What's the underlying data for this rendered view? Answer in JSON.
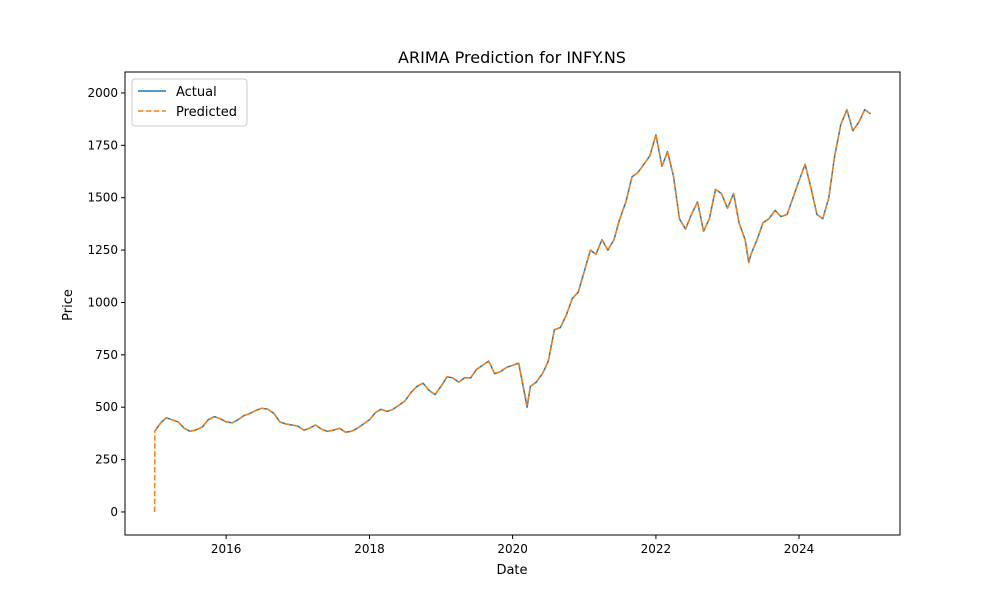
{
  "chart_data": {
    "type": "line",
    "title": "ARIMA Prediction for INFY.NS",
    "xlabel": "Date",
    "ylabel": "Price",
    "xlim": [
      "2014-08-03",
      "2025-05-30"
    ],
    "ylim": [
      -110,
      2100
    ],
    "x_ticks": [
      {
        "value": "2016-01-01",
        "label": "2016"
      },
      {
        "value": "2018-01-01",
        "label": "2018"
      },
      {
        "value": "2020-01-01",
        "label": "2020"
      },
      {
        "value": "2022-01-01",
        "label": "2022"
      },
      {
        "value": "2024-01-01",
        "label": "2024"
      }
    ],
    "y_ticks": [
      0,
      250,
      500,
      750,
      1000,
      1250,
      1500,
      1750,
      2000
    ],
    "grid": false,
    "legend_position": "top-left",
    "series": [
      {
        "name": "Actual",
        "color": "#1f77b4",
        "style": "solid",
        "points": [
          [
            "2015-01-01",
            385
          ],
          [
            "2015-02-01",
            425
          ],
          [
            "2015-03-01",
            450
          ],
          [
            "2015-04-01",
            440
          ],
          [
            "2015-05-01",
            430
          ],
          [
            "2015-06-01",
            400
          ],
          [
            "2015-07-01",
            385
          ],
          [
            "2015-08-01",
            392
          ],
          [
            "2015-09-01",
            405
          ],
          [
            "2015-10-01",
            440
          ],
          [
            "2015-11-01",
            455
          ],
          [
            "2015-12-01",
            445
          ],
          [
            "2016-01-01",
            430
          ],
          [
            "2016-02-01",
            425
          ],
          [
            "2016-03-01",
            440
          ],
          [
            "2016-04-01",
            460
          ],
          [
            "2016-05-01",
            470
          ],
          [
            "2016-06-01",
            485
          ],
          [
            "2016-07-01",
            495
          ],
          [
            "2016-08-01",
            490
          ],
          [
            "2016-09-01",
            470
          ],
          [
            "2016-10-01",
            430
          ],
          [
            "2016-11-01",
            420
          ],
          [
            "2016-12-01",
            415
          ],
          [
            "2017-01-01",
            410
          ],
          [
            "2017-02-01",
            390
          ],
          [
            "2017-03-01",
            400
          ],
          [
            "2017-04-01",
            415
          ],
          [
            "2017-05-01",
            395
          ],
          [
            "2017-06-01",
            385
          ],
          [
            "2017-07-01",
            390
          ],
          [
            "2017-08-01",
            400
          ],
          [
            "2017-09-01",
            380
          ],
          [
            "2017-10-01",
            385
          ],
          [
            "2017-11-01",
            400
          ],
          [
            "2017-12-01",
            420
          ],
          [
            "2018-01-01",
            440
          ],
          [
            "2018-02-01",
            475
          ],
          [
            "2018-03-01",
            490
          ],
          [
            "2018-04-01",
            480
          ],
          [
            "2018-05-01",
            490
          ],
          [
            "2018-06-01",
            510
          ],
          [
            "2018-07-01",
            530
          ],
          [
            "2018-08-01",
            570
          ],
          [
            "2018-09-01",
            600
          ],
          [
            "2018-10-01",
            615
          ],
          [
            "2018-11-01",
            580
          ],
          [
            "2018-12-01",
            560
          ],
          [
            "2019-01-01",
            600
          ],
          [
            "2019-02-01",
            645
          ],
          [
            "2019-03-01",
            640
          ],
          [
            "2019-04-01",
            620
          ],
          [
            "2019-05-01",
            640
          ],
          [
            "2019-06-01",
            640
          ],
          [
            "2019-07-01",
            680
          ],
          [
            "2019-08-01",
            700
          ],
          [
            "2019-09-01",
            720
          ],
          [
            "2019-10-01",
            660
          ],
          [
            "2019-11-01",
            670
          ],
          [
            "2019-12-01",
            690
          ],
          [
            "2020-01-01",
            700
          ],
          [
            "2020-02-01",
            710
          ],
          [
            "2020-03-15",
            500
          ],
          [
            "2020-04-01",
            600
          ],
          [
            "2020-05-01",
            620
          ],
          [
            "2020-06-01",
            660
          ],
          [
            "2020-07-01",
            720
          ],
          [
            "2020-08-01",
            870
          ],
          [
            "2020-09-01",
            880
          ],
          [
            "2020-10-01",
            940
          ],
          [
            "2020-11-01",
            1020
          ],
          [
            "2020-12-01",
            1050
          ],
          [
            "2021-01-01",
            1150
          ],
          [
            "2021-02-01",
            1250
          ],
          [
            "2021-03-01",
            1230
          ],
          [
            "2021-04-01",
            1300
          ],
          [
            "2021-05-01",
            1250
          ],
          [
            "2021-06-01",
            1300
          ],
          [
            "2021-07-01",
            1400
          ],
          [
            "2021-08-01",
            1480
          ],
          [
            "2021-09-01",
            1600
          ],
          [
            "2021-10-01",
            1620
          ],
          [
            "2021-11-01",
            1660
          ],
          [
            "2021-12-01",
            1700
          ],
          [
            "2022-01-01",
            1800
          ],
          [
            "2022-02-01",
            1650
          ],
          [
            "2022-03-01",
            1720
          ],
          [
            "2022-04-01",
            1600
          ],
          [
            "2022-05-01",
            1400
          ],
          [
            "2022-06-01",
            1350
          ],
          [
            "2022-07-01",
            1420
          ],
          [
            "2022-08-01",
            1480
          ],
          [
            "2022-09-01",
            1340
          ],
          [
            "2022-10-01",
            1400
          ],
          [
            "2022-11-01",
            1540
          ],
          [
            "2022-12-01",
            1520
          ],
          [
            "2023-01-01",
            1450
          ],
          [
            "2023-02-01",
            1520
          ],
          [
            "2023-03-01",
            1380
          ],
          [
            "2023-04-01",
            1300
          ],
          [
            "2023-04-20",
            1190
          ],
          [
            "2023-05-01",
            1230
          ],
          [
            "2023-06-01",
            1300
          ],
          [
            "2023-07-01",
            1380
          ],
          [
            "2023-08-01",
            1400
          ],
          [
            "2023-09-01",
            1440
          ],
          [
            "2023-10-01",
            1410
          ],
          [
            "2023-11-01",
            1420
          ],
          [
            "2023-12-01",
            1500
          ],
          [
            "2024-01-01",
            1580
          ],
          [
            "2024-02-01",
            1660
          ],
          [
            "2024-03-01",
            1550
          ],
          [
            "2024-04-01",
            1420
          ],
          [
            "2024-05-01",
            1400
          ],
          [
            "2024-06-01",
            1500
          ],
          [
            "2024-07-01",
            1700
          ],
          [
            "2024-08-01",
            1850
          ],
          [
            "2024-09-01",
            1920
          ],
          [
            "2024-10-01",
            1820
          ],
          [
            "2024-11-01",
            1860
          ],
          [
            "2024-12-01",
            1920
          ],
          [
            "2024-12-31",
            1900
          ]
        ]
      },
      {
        "name": "Predicted",
        "color": "#ff7f0e",
        "style": "dashed",
        "points": [
          [
            "2015-01-01",
            0
          ],
          [
            "2015-01-02",
            385
          ],
          [
            "2015-02-01",
            425
          ],
          [
            "2015-03-01",
            450
          ],
          [
            "2015-04-01",
            440
          ],
          [
            "2015-05-01",
            430
          ],
          [
            "2015-06-01",
            400
          ],
          [
            "2015-07-01",
            385
          ],
          [
            "2015-08-01",
            392
          ],
          [
            "2015-09-01",
            405
          ],
          [
            "2015-10-01",
            440
          ],
          [
            "2015-11-01",
            455
          ],
          [
            "2015-12-01",
            445
          ],
          [
            "2016-01-01",
            430
          ],
          [
            "2016-02-01",
            425
          ],
          [
            "2016-03-01",
            440
          ],
          [
            "2016-04-01",
            460
          ],
          [
            "2016-05-01",
            470
          ],
          [
            "2016-06-01",
            485
          ],
          [
            "2016-07-01",
            495
          ],
          [
            "2016-08-01",
            490
          ],
          [
            "2016-09-01",
            470
          ],
          [
            "2016-10-01",
            430
          ],
          [
            "2016-11-01",
            420
          ],
          [
            "2016-12-01",
            415
          ],
          [
            "2017-01-01",
            410
          ],
          [
            "2017-02-01",
            390
          ],
          [
            "2017-03-01",
            400
          ],
          [
            "2017-04-01",
            415
          ],
          [
            "2017-05-01",
            395
          ],
          [
            "2017-06-01",
            385
          ],
          [
            "2017-07-01",
            390
          ],
          [
            "2017-08-01",
            400
          ],
          [
            "2017-09-01",
            380
          ],
          [
            "2017-10-01",
            385
          ],
          [
            "2017-11-01",
            400
          ],
          [
            "2017-12-01",
            420
          ],
          [
            "2018-01-01",
            440
          ],
          [
            "2018-02-01",
            475
          ],
          [
            "2018-03-01",
            490
          ],
          [
            "2018-04-01",
            480
          ],
          [
            "2018-05-01",
            490
          ],
          [
            "2018-06-01",
            510
          ],
          [
            "2018-07-01",
            530
          ],
          [
            "2018-08-01",
            570
          ],
          [
            "2018-09-01",
            600
          ],
          [
            "2018-10-01",
            615
          ],
          [
            "2018-11-01",
            580
          ],
          [
            "2018-12-01",
            560
          ],
          [
            "2019-01-01",
            600
          ],
          [
            "2019-02-01",
            645
          ],
          [
            "2019-03-01",
            640
          ],
          [
            "2019-04-01",
            620
          ],
          [
            "2019-05-01",
            640
          ],
          [
            "2019-06-01",
            640
          ],
          [
            "2019-07-01",
            680
          ],
          [
            "2019-08-01",
            700
          ],
          [
            "2019-09-01",
            720
          ],
          [
            "2019-10-01",
            660
          ],
          [
            "2019-11-01",
            670
          ],
          [
            "2019-12-01",
            690
          ],
          [
            "2020-01-01",
            700
          ],
          [
            "2020-02-01",
            710
          ],
          [
            "2020-03-15",
            510
          ],
          [
            "2020-04-01",
            600
          ],
          [
            "2020-05-01",
            620
          ],
          [
            "2020-06-01",
            660
          ],
          [
            "2020-07-01",
            720
          ],
          [
            "2020-08-01",
            870
          ],
          [
            "2020-09-01",
            880
          ],
          [
            "2020-10-01",
            940
          ],
          [
            "2020-11-01",
            1020
          ],
          [
            "2020-12-01",
            1050
          ],
          [
            "2021-01-01",
            1150
          ],
          [
            "2021-02-01",
            1250
          ],
          [
            "2021-03-01",
            1230
          ],
          [
            "2021-04-01",
            1300
          ],
          [
            "2021-05-01",
            1250
          ],
          [
            "2021-06-01",
            1300
          ],
          [
            "2021-07-01",
            1400
          ],
          [
            "2021-08-01",
            1480
          ],
          [
            "2021-09-01",
            1600
          ],
          [
            "2021-10-01",
            1620
          ],
          [
            "2021-11-01",
            1660
          ],
          [
            "2021-12-01",
            1700
          ],
          [
            "2022-01-01",
            1800
          ],
          [
            "2022-02-01",
            1650
          ],
          [
            "2022-03-01",
            1720
          ],
          [
            "2022-04-01",
            1600
          ],
          [
            "2022-05-01",
            1400
          ],
          [
            "2022-06-01",
            1350
          ],
          [
            "2022-07-01",
            1420
          ],
          [
            "2022-08-01",
            1480
          ],
          [
            "2022-09-01",
            1340
          ],
          [
            "2022-10-01",
            1400
          ],
          [
            "2022-11-01",
            1540
          ],
          [
            "2022-12-01",
            1520
          ],
          [
            "2023-01-01",
            1450
          ],
          [
            "2023-02-01",
            1520
          ],
          [
            "2023-03-01",
            1380
          ],
          [
            "2023-04-01",
            1300
          ],
          [
            "2023-04-20",
            1190
          ],
          [
            "2023-05-01",
            1230
          ],
          [
            "2023-06-01",
            1300
          ],
          [
            "2023-07-01",
            1380
          ],
          [
            "2023-08-01",
            1400
          ],
          [
            "2023-09-01",
            1440
          ],
          [
            "2023-10-01",
            1410
          ],
          [
            "2023-11-01",
            1420
          ],
          [
            "2023-12-01",
            1500
          ],
          [
            "2024-01-01",
            1580
          ],
          [
            "2024-02-01",
            1660
          ],
          [
            "2024-03-01",
            1550
          ],
          [
            "2024-04-01",
            1420
          ],
          [
            "2024-05-01",
            1400
          ],
          [
            "2024-06-01",
            1500
          ],
          [
            "2024-07-01",
            1700
          ],
          [
            "2024-08-01",
            1850
          ],
          [
            "2024-09-01",
            1920
          ],
          [
            "2024-10-01",
            1820
          ],
          [
            "2024-11-01",
            1860
          ],
          [
            "2024-12-01",
            1920
          ],
          [
            "2024-12-31",
            1900
          ]
        ]
      }
    ]
  }
}
